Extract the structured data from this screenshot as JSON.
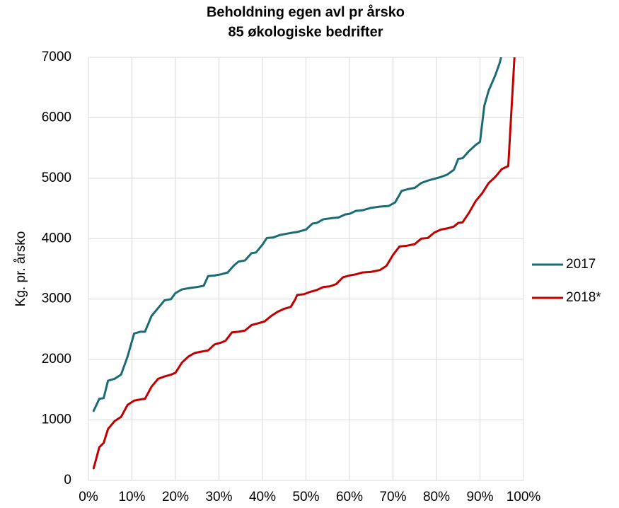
{
  "chart_data": {
    "type": "line",
    "title": "Beholdning egen avl pr årsko",
    "subtitle": "85 økologiske bedrifter",
    "y_label": "Kg. pr. årsko",
    "xlim": [
      0,
      100
    ],
    "xticks": [
      {
        "value": 0,
        "label": "0%"
      },
      {
        "value": 10,
        "label": "10%"
      },
      {
        "value": 20,
        "label": "20%"
      },
      {
        "value": 30,
        "label": "30%"
      },
      {
        "value": 40,
        "label": "40%"
      },
      {
        "value": 50,
        "label": "50%"
      },
      {
        "value": 60,
        "label": "60%"
      },
      {
        "value": 70,
        "label": "70%"
      },
      {
        "value": 80,
        "label": "80%"
      },
      {
        "value": 90,
        "label": "90%"
      },
      {
        "value": 100,
        "label": "100%"
      }
    ],
    "ylim": [
      0,
      7000
    ],
    "yticks": [
      0,
      1000,
      2000,
      3000,
      4000,
      5000,
      6000,
      7000
    ],
    "grid": true,
    "legend": "right",
    "series": [
      {
        "name": "2017",
        "color": "#1a6b73",
        "x": [
          1.2,
          2.5,
          3.5,
          4.5,
          6,
          7.5,
          9,
          10.5,
          12,
          13,
          14.5,
          16,
          17.5,
          19,
          20,
          21.5,
          23,
          25,
          26.5,
          27.5,
          29,
          30.5,
          32,
          33.5,
          34.5,
          36,
          37.5,
          38.5,
          40,
          41,
          42.5,
          44,
          45.5,
          47,
          48,
          50,
          51.5,
          52.5,
          54,
          56,
          57.5,
          59,
          60,
          61.5,
          63,
          65,
          67,
          69,
          70.5,
          72,
          73.5,
          75,
          76.5,
          78,
          79.5,
          81,
          82.5,
          84,
          85,
          86,
          87.5,
          89,
          90,
          91,
          92,
          93.5,
          94.5,
          95.2
        ],
        "values": [
          1150,
          1350,
          1360,
          1650,
          1680,
          1750,
          2050,
          2430,
          2460,
          2460,
          2720,
          2850,
          2980,
          3000,
          3100,
          3160,
          3180,
          3200,
          3220,
          3380,
          3390,
          3410,
          3440,
          3560,
          3620,
          3640,
          3760,
          3770,
          3900,
          4010,
          4020,
          4060,
          4080,
          4100,
          4110,
          4150,
          4250,
          4260,
          4320,
          4340,
          4350,
          4400,
          4410,
          4460,
          4470,
          4510,
          4530,
          4540,
          4600,
          4790,
          4820,
          4840,
          4920,
          4960,
          4990,
          5020,
          5060,
          5140,
          5320,
          5330,
          5450,
          5550,
          5600,
          6200,
          6450,
          6700,
          6900,
          7100
        ]
      },
      {
        "name": "2018*",
        "color": "#c00000",
        "x": [
          1.2,
          2.5,
          3.5,
          4.5,
          6,
          7.5,
          9,
          10.5,
          12,
          13,
          14.5,
          16,
          17.5,
          19,
          20,
          21.5,
          23,
          24.5,
          26,
          27.5,
          29,
          30.5,
          31.5,
          33,
          34.5,
          36,
          37.5,
          39,
          40.5,
          42,
          43.5,
          45,
          46.5,
          47.5,
          48,
          49.5,
          51,
          52.5,
          54,
          55.5,
          57,
          58.5,
          60,
          61.5,
          63,
          65,
          67,
          68.5,
          70,
          71.5,
          73,
          75,
          76.5,
          78,
          79.5,
          81,
          82.5,
          84,
          85,
          86,
          87.5,
          89,
          90.5,
          92,
          93.5,
          95,
          96.5,
          98
        ],
        "values": [
          200,
          550,
          620,
          850,
          980,
          1050,
          1250,
          1320,
          1340,
          1350,
          1550,
          1680,
          1720,
          1750,
          1780,
          1950,
          2050,
          2110,
          2130,
          2150,
          2250,
          2280,
          2310,
          2450,
          2460,
          2480,
          2570,
          2600,
          2630,
          2720,
          2790,
          2840,
          2870,
          2990,
          3070,
          3080,
          3120,
          3150,
          3200,
          3210,
          3250,
          3360,
          3390,
          3410,
          3440,
          3450,
          3480,
          3550,
          3730,
          3870,
          3880,
          3910,
          4000,
          4010,
          4100,
          4150,
          4170,
          4200,
          4260,
          4270,
          4430,
          4620,
          4750,
          4920,
          5020,
          5150,
          5200,
          7100
        ]
      }
    ]
  }
}
